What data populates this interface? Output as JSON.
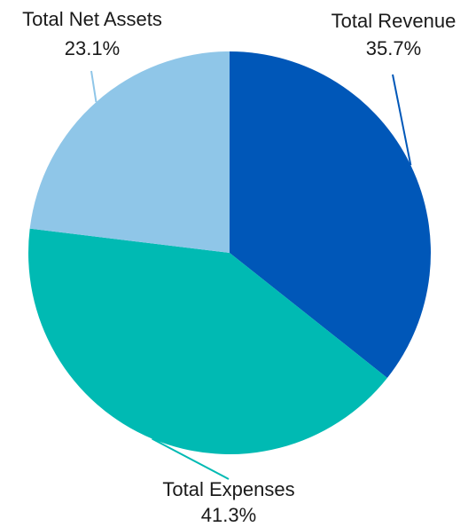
{
  "chart_data": {
    "type": "pie",
    "title": "",
    "slices": [
      {
        "label": "Total Revenue",
        "value": 35.7,
        "value_label": "35.7%",
        "color": "#0057b8"
      },
      {
        "label": "Total Expenses",
        "value": 41.3,
        "value_label": "41.3%",
        "color": "#00bab3"
      },
      {
        "label": "Total Net Assets",
        "value": 23.1,
        "value_label": "23.1%",
        "color": "#8fc6e8"
      }
    ],
    "start_angle": "12 o'clock",
    "direction": "clockwise",
    "legend": "none"
  }
}
